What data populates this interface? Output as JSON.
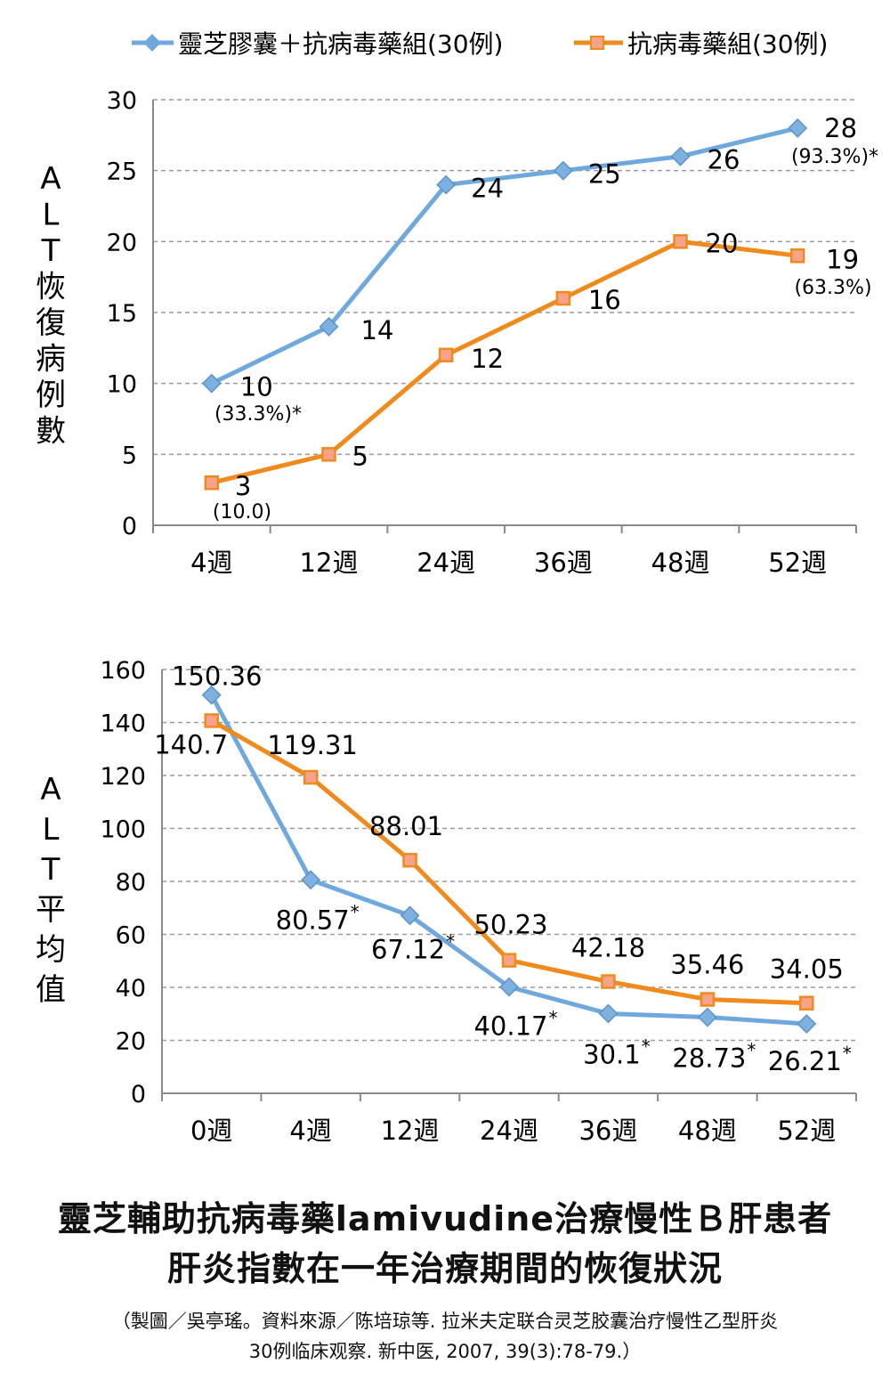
{
  "legend": {
    "series1": "靈芝膠囊＋抗病毒藥組(30例)",
    "series2": "抗病毒藥組(30例)"
  },
  "colors": {
    "series1": "#6fa8dc",
    "series2": "#f08a1c",
    "grid": "#9a9a9a",
    "axis": "#8a8a8a"
  },
  "chart_data": [
    {
      "type": "line",
      "ylabel": "ALT恢復病例數",
      "ylabel_chars": [
        "A",
        "L",
        "T",
        "恢",
        "復",
        "病",
        "例",
        "數"
      ],
      "categories": [
        "4週",
        "12週",
        "24週",
        "36週",
        "48週",
        "52週"
      ],
      "ylim": [
        0,
        30
      ],
      "yticks": [
        "0",
        "5",
        "10",
        "15",
        "20",
        "25",
        "30"
      ],
      "grid": true,
      "legend_position": "top",
      "series": [
        {
          "name": "靈芝膠囊＋抗病毒藥組(30例)",
          "marker": "diamond",
          "values": [
            10,
            14,
            24,
            25,
            26,
            28
          ],
          "labels": [
            "10",
            "14",
            "24",
            "25",
            "26",
            "28"
          ]
        },
        {
          "name": "抗病毒藥組(30例)",
          "marker": "square",
          "values": [
            3,
            5,
            12,
            16,
            20,
            19
          ],
          "labels": [
            "3",
            "5",
            "12",
            "16",
            "20",
            "19"
          ]
        }
      ],
      "annotations": [
        "(33.3%)*",
        "(93.3%)*",
        "(10.0)",
        "(63.3%)"
      ]
    },
    {
      "type": "line",
      "ylabel": "ALT平均值",
      "ylabel_chars": [
        "A",
        "L",
        "T",
        "平",
        "均",
        "值"
      ],
      "categories": [
        "0週",
        "4週",
        "12週",
        "24週",
        "36週",
        "48週",
        "52週"
      ],
      "ylim": [
        0,
        160
      ],
      "yticks": [
        "0",
        "20",
        "40",
        "60",
        "80",
        "100",
        "120",
        "140",
        "160"
      ],
      "grid": true,
      "series": [
        {
          "name": "靈芝膠囊＋抗病毒藥組(30例)",
          "marker": "diamond",
          "values": [
            150.36,
            80.57,
            67.12,
            40.17,
            30.1,
            28.73,
            26.21
          ],
          "labels": [
            "150.36",
            "80.57",
            "67.12",
            "40.17",
            "30.1",
            "28.73",
            "26.21"
          ],
          "stars": [
            "",
            "*",
            "*",
            "*",
            "*",
            "*",
            "*"
          ]
        },
        {
          "name": "抗病毒藥組(30例)",
          "marker": "square",
          "values": [
            140.7,
            119.31,
            88.01,
            50.23,
            42.18,
            35.46,
            34.05
          ],
          "labels": [
            "140.7",
            "119.31",
            "88.01",
            "50.23",
            "42.18",
            "35.46",
            "34.05"
          ]
        }
      ]
    }
  ],
  "caption": {
    "title_line1": "靈芝輔助抗病毒藥lamivudine治療慢性Ｂ肝患者",
    "title_line2": "肝炎指數在一年治療期間的恢復狀況",
    "source_line1": "（製圖／吳亭瑤。資料來源／陈培琼等. 拉米夫定联合灵芝胶囊治疗慢性乙型肝炎",
    "source_line2": "30例临床观察. 新中医, 2007, 39(3):78-79.）"
  }
}
